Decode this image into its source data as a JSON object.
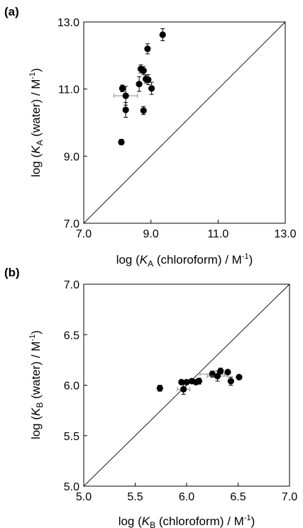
{
  "figure": {
    "panels": [
      {
        "label": "(a)",
        "xlabel": {
          "pre": "log (",
          "var": "K",
          "sub": "A",
          "post": " (chloroform) / M",
          "sup": "-1",
          "end": ")"
        },
        "ylabel": {
          "pre": "log (",
          "var": "K",
          "sub": "A",
          "post": " (water) / M",
          "sup": "-1",
          "end": ")"
        }
      },
      {
        "label": "(b)",
        "xlabel": {
          "pre": "log (",
          "var": "K",
          "sub": "B",
          "post": " (chloroform) / M",
          "sup": "-1",
          "end": ")"
        },
        "ylabel": {
          "pre": "log (",
          "var": "K",
          "sub": "B",
          "post": " (water) / M",
          "sup": "-1",
          "end": ")"
        }
      }
    ]
  },
  "chart_data": [
    {
      "type": "scatter",
      "panel": "(a)",
      "xlim": [
        7.0,
        13.0
      ],
      "ylim": [
        7.0,
        13.0
      ],
      "xticks": [
        "7.0",
        "9.0",
        "11.0",
        "13.0"
      ],
      "yticks": [
        "7.0",
        "9.0",
        "11.0",
        "13.0"
      ],
      "grid": false,
      "diagonal": "y = x",
      "series": [
        {
          "x": [
            9.35,
            8.9,
            8.7,
            8.78,
            8.85,
            8.92,
            8.65,
            9.02,
            8.15,
            8.25,
            8.25,
            8.78,
            8.12
          ],
          "y": [
            12.62,
            12.2,
            11.6,
            11.55,
            11.3,
            11.28,
            11.15,
            11.02,
            11.02,
            10.8,
            10.38,
            10.36,
            9.42
          ],
          "yerr": [
            0.18,
            0.15,
            0.12,
            0.12,
            0.12,
            0.15,
            0.22,
            0.18,
            0.1,
            0.28,
            0.22,
            0.12,
            0.08
          ],
          "xerr": [
            0.0,
            0.0,
            0.0,
            0.0,
            0.0,
            0.0,
            0.0,
            0.0,
            0.0,
            0.35,
            0.0,
            0.0,
            0.0
          ]
        }
      ]
    },
    {
      "type": "scatter",
      "panel": "(b)",
      "xlim": [
        5.0,
        7.0
      ],
      "ylim": [
        5.0,
        7.0
      ],
      "xticks": [
        "5.0",
        "5.5",
        "6.0",
        "6.5",
        "7.0"
      ],
      "yticks": [
        "5.0",
        "5.5",
        "6.0",
        "6.5",
        "7.0"
      ],
      "grid": false,
      "diagonal": "y = x",
      "series": [
        {
          "x": [
            5.74,
            5.95,
            5.97,
            6.0,
            6.05,
            6.09,
            6.12,
            6.25,
            6.3,
            6.33,
            6.4,
            6.43,
            6.51
          ],
          "y": [
            5.97,
            6.03,
            5.96,
            6.03,
            6.04,
            6.03,
            6.04,
            6.11,
            6.09,
            6.14,
            6.13,
            6.04,
            6.08
          ],
          "yerr": [
            0.03,
            0.02,
            0.05,
            0.02,
            0.02,
            0.02,
            0.03,
            0.03,
            0.05,
            0.03,
            0.02,
            0.04,
            0.02
          ],
          "xerr": [
            0.0,
            0.0,
            0.06,
            0.0,
            0.0,
            0.0,
            0.0,
            0.12,
            0.1,
            0.0,
            0.0,
            0.0,
            0.0
          ]
        }
      ]
    }
  ]
}
